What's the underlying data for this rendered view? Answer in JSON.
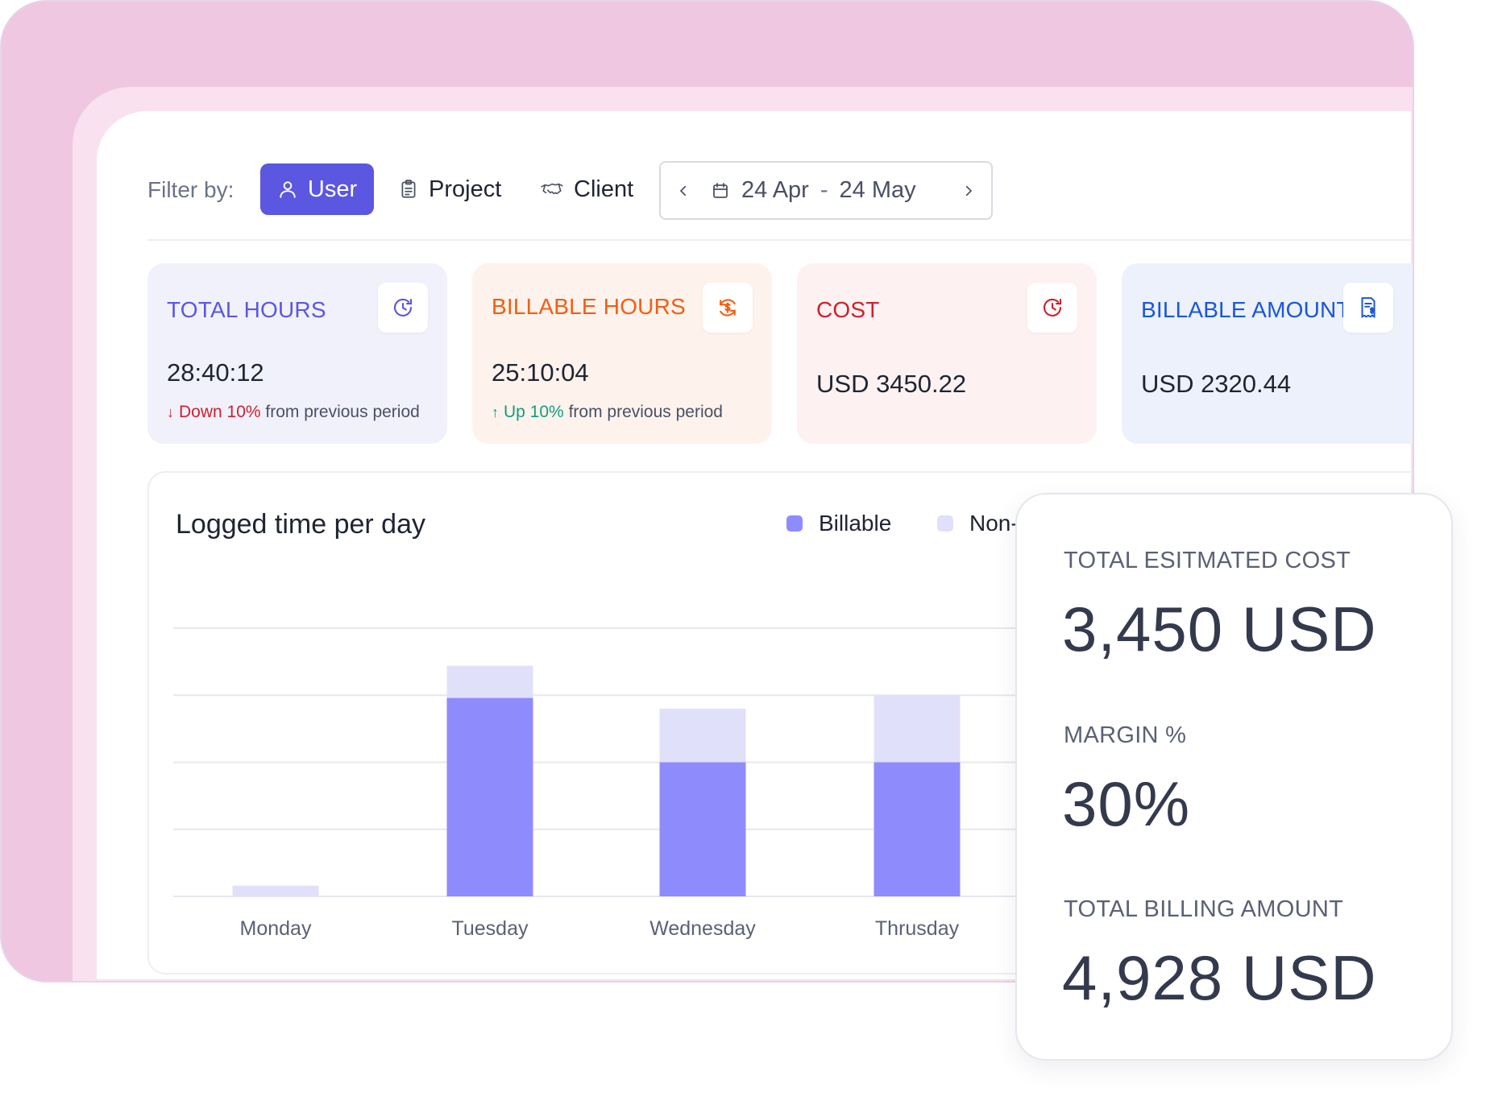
{
  "filter": {
    "label": "Filter by:",
    "options": [
      {
        "label": "User",
        "active": true,
        "icon": "user-icon"
      },
      {
        "label": "Project",
        "active": false,
        "icon": "clipboard-icon"
      },
      {
        "label": "Client",
        "active": false,
        "icon": "handshake-icon"
      }
    ],
    "date_start": "24 Apr",
    "date_separator": "-",
    "date_end": "24 May"
  },
  "cards": [
    {
      "title": "TOTAL HOURS",
      "value": "28:40:12",
      "trend_dir": "down",
      "trend_pct": "Down 10%",
      "trend_text": "from previous period",
      "icon": "clock-refresh-icon",
      "color": "#5b57e0"
    },
    {
      "title": "BILLABLE HOURS",
      "value": "25:10:04",
      "trend_dir": "up",
      "trend_pct": "Up 10%",
      "trend_text": "from previous period",
      "icon": "dollar-refresh-icon",
      "color": "#f05f12"
    },
    {
      "title": "COST",
      "value": "USD 3450.22",
      "icon": "clock-refresh-icon",
      "color": "#d11f2c"
    },
    {
      "title": "BILLABLE AMOUNT",
      "value": "USD 2320.44",
      "icon": "invoice-icon",
      "color": "#1a56db"
    }
  ],
  "chart": {
    "title": "Logged time per day",
    "legend": {
      "billable": "Billable",
      "non_billable": "Non-"
    }
  },
  "chart_data": {
    "type": "bar",
    "stacked": true,
    "title": "Logged time per day",
    "categories": [
      "Monday",
      "Tuesday",
      "Wednesday",
      "Thrusday"
    ],
    "series": [
      {
        "name": "Billable",
        "values": [
          0,
          7.4,
          5.0,
          5.0
        ],
        "color": "#8e8cfd"
      },
      {
        "name": "Non-",
        "values": [
          0.4,
          1.2,
          2.0,
          2.5
        ],
        "color": "#e0e0fa"
      }
    ],
    "ylim": [
      0,
      10
    ],
    "grid": true,
    "legend_position": "top-right"
  },
  "summary": {
    "cost_label": "TOTAL ESITMATED COST",
    "cost_value": "3,450 USD",
    "margin_label": "MARGIN %",
    "margin_value": "30%",
    "billing_label": "TOTAL BILLING AMOUNT",
    "billing_value": "4,928 USD"
  }
}
